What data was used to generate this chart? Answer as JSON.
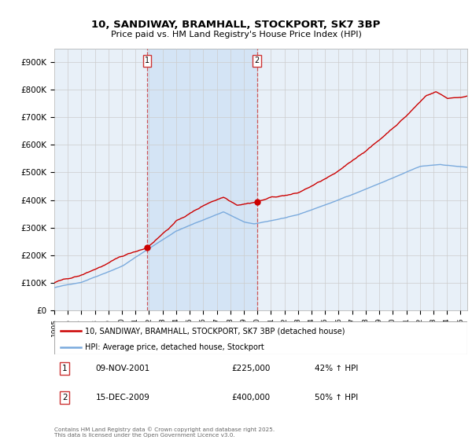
{
  "title": "10, SANDIWAY, BRAMHALL, STOCKPORT, SK7 3BP",
  "subtitle": "Price paid vs. HM Land Registry's House Price Index (HPI)",
  "ylabel_ticks": [
    "£0",
    "£100K",
    "£200K",
    "£300K",
    "£400K",
    "£500K",
    "£600K",
    "£700K",
    "£800K",
    "£900K"
  ],
  "ytick_values": [
    0,
    100000,
    200000,
    300000,
    400000,
    500000,
    600000,
    700000,
    800000,
    900000
  ],
  "ylim": [
    0,
    950000
  ],
  "xlim_start": 1995.0,
  "xlim_end": 2025.5,
  "marker1_x": 2001.86,
  "marker2_x": 2009.96,
  "red_line_color": "#cc0000",
  "blue_line_color": "#7aaadd",
  "vline_color": "#cc3333",
  "shade_color": "#ccddf5",
  "grid_color": "#cccccc",
  "background_color": "#ddeeff",
  "plot_bg_color": "#e8f0f8",
  "legend_red_label": "10, SANDIWAY, BRAMHALL, STOCKPORT, SK7 3BP (detached house)",
  "legend_blue_label": "HPI: Average price, detached house, Stockport",
  "annotation1_date": "09-NOV-2001",
  "annotation1_price": "£225,000",
  "annotation1_hpi": "42% ↑ HPI",
  "annotation2_date": "15-DEC-2009",
  "annotation2_price": "£400,000",
  "annotation2_hpi": "50% ↑ HPI",
  "footer": "Contains HM Land Registry data © Crown copyright and database right 2025.\nThis data is licensed under the Open Government Licence v3.0."
}
